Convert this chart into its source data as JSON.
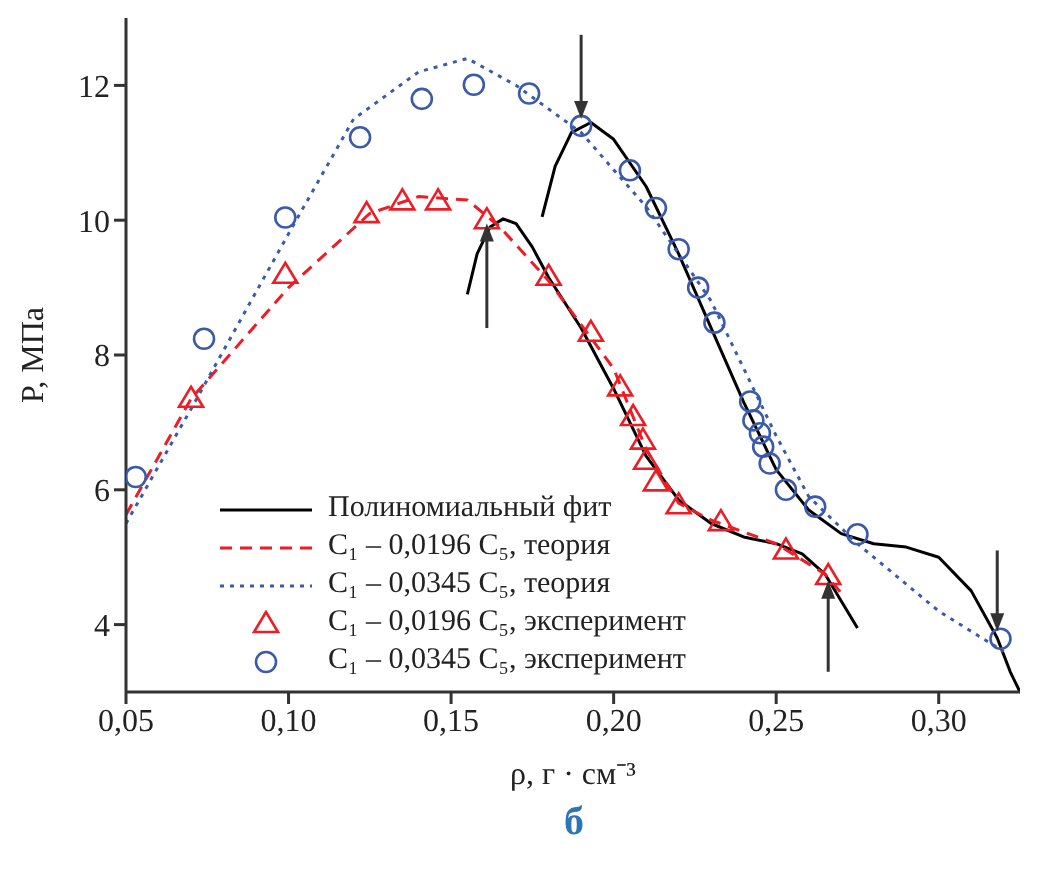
{
  "chart_data": {
    "type": "scatter",
    "title": "б",
    "xlabel": "ρ, г · см⁻³",
    "ylabel": "P,  МПа",
    "xlim": [
      0.05,
      0.325
    ],
    "xticks": [
      {
        "value": 0.05,
        "label": "0,05"
      },
      {
        "value": 0.1,
        "label": "0,10"
      },
      {
        "value": 0.15,
        "label": "0,15"
      },
      {
        "value": 0.2,
        "label": "0,20"
      },
      {
        "value": 0.25,
        "label": "0,25"
      },
      {
        "value": 0.3,
        "label": "0,30"
      }
    ],
    "ylim": [
      3,
      13
    ],
    "yticks": [
      4,
      6,
      8,
      10,
      12
    ],
    "grid": false,
    "legend": "bottom left",
    "series": [
      {
        "name": "Полиномиальный фит",
        "type": "line",
        "line_style": "solid",
        "color": "#000000",
        "x": [
          0.155,
          0.158,
          0.162,
          0.166,
          0.17,
          0.175,
          0.18,
          0.19,
          0.2,
          0.21,
          0.22,
          0.23,
          0.24,
          0.25,
          0.258,
          0.265,
          0.27,
          0.275
        ],
        "values": [
          8.9,
          9.5,
          9.9,
          10.02,
          9.95,
          9.6,
          9.15,
          8.4,
          7.5,
          6.5,
          5.85,
          5.5,
          5.3,
          5.2,
          5.05,
          4.75,
          4.35,
          3.95
        ]
      },
      {
        "type": "line",
        "line_style": "solid",
        "color": "#000000",
        "x": [
          0.178,
          0.182,
          0.187,
          0.193,
          0.2,
          0.21,
          0.22,
          0.23,
          0.24,
          0.25,
          0.26,
          0.27,
          0.28,
          0.29,
          0.3,
          0.31,
          0.318,
          0.322,
          0.325
        ],
        "values": [
          10.05,
          10.8,
          11.3,
          11.45,
          11.2,
          10.5,
          9.5,
          8.4,
          7.3,
          6.3,
          5.7,
          5.35,
          5.2,
          5.15,
          5.0,
          4.5,
          3.8,
          3.3,
          3.0
        ]
      },
      {
        "name": "C₁ – 0,0196 C₅, теория",
        "type": "line",
        "line_style": "dashed",
        "color": "#ee1c25",
        "x": [
          0.05,
          0.07,
          0.1,
          0.125,
          0.14,
          0.155,
          0.165,
          0.18,
          0.2,
          0.21,
          0.22,
          0.23,
          0.25,
          0.265,
          0.27
        ],
        "values": [
          5.63,
          7.35,
          9.0,
          10.1,
          10.35,
          10.3,
          9.9,
          9.1,
          7.8,
          6.6,
          5.8,
          5.55,
          5.2,
          4.75,
          4.47
        ]
      },
      {
        "name": "C₁ – 0,0345 C₅, теория",
        "type": "line",
        "line_style": "dotted",
        "color": "#3c5aaa",
        "x": [
          0.05,
          0.07,
          0.1,
          0.12,
          0.14,
          0.155,
          0.17,
          0.19,
          0.21,
          0.23,
          0.25,
          0.26,
          0.275,
          0.29,
          0.3,
          0.32
        ],
        "values": [
          5.5,
          7.2,
          9.8,
          11.5,
          12.2,
          12.4,
          12.0,
          11.3,
          10.2,
          8.8,
          6.8,
          5.9,
          5.2,
          4.6,
          4.2,
          3.6
        ]
      },
      {
        "name": "C₁ – 0,0196 C₅, эксперимент",
        "marker": "triangle",
        "color": "#ee1c25",
        "x": [
          0.07,
          0.099,
          0.124,
          0.135,
          0.146,
          0.161,
          0.18,
          0.193,
          0.202,
          0.206,
          0.209,
          0.21,
          0.213,
          0.22,
          0.233,
          0.253,
          0.266
        ],
        "values": [
          7.35,
          9.19,
          10.09,
          10.28,
          10.28,
          10.0,
          9.16,
          8.33,
          7.52,
          7.08,
          6.73,
          6.43,
          6.11,
          5.77,
          5.52,
          5.1,
          4.72
        ]
      },
      {
        "name": "C₁ – 0,0345 C₅, эксперимент",
        "marker": "circle",
        "color": "#3c5aaa",
        "x": [
          0.053,
          0.074,
          0.099,
          0.122,
          0.141,
          0.157,
          0.174,
          0.19,
          0.205,
          0.213,
          0.22,
          0.226,
          0.231,
          0.242,
          0.243,
          0.245,
          0.246,
          0.248,
          0.253,
          0.262,
          0.275,
          0.319
        ],
        "values": [
          6.19,
          8.24,
          10.04,
          11.23,
          11.8,
          12.01,
          11.88,
          11.4,
          10.74,
          10.18,
          9.57,
          9.0,
          8.48,
          7.31,
          7.03,
          6.84,
          6.64,
          6.39,
          6.0,
          5.75,
          5.34,
          3.79
        ]
      }
    ]
  }
}
